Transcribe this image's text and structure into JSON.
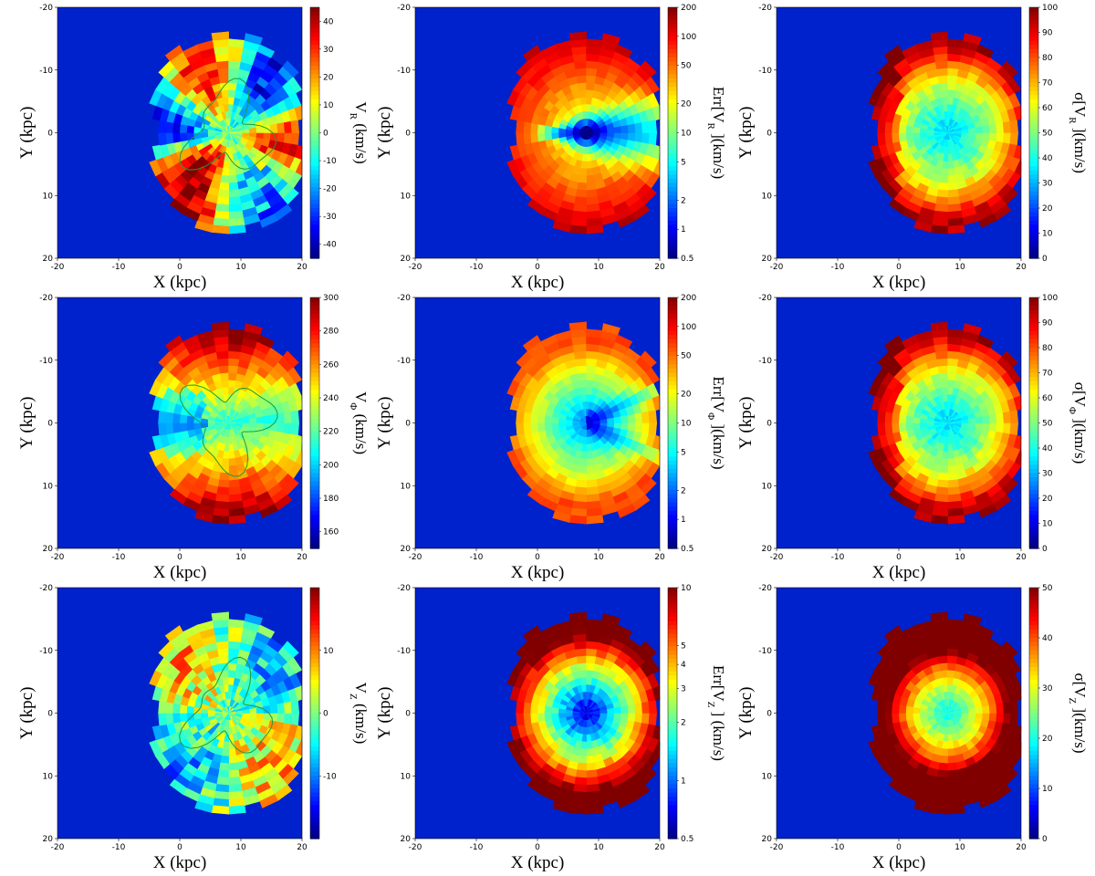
{
  "figure": {
    "background_color": "#0022cc",
    "rows": 3,
    "cols": 3
  },
  "chart_data": [
    {
      "type": "heatmap",
      "id": "vr",
      "title": "",
      "xlabel": "X (kpc)",
      "ylabel": "Y (kpc)",
      "xlim": [
        -20,
        20
      ],
      "ylim": [
        -20,
        20
      ],
      "y_inverted": true,
      "xticks": [
        "-20",
        "-10",
        "0",
        "10",
        "20"
      ],
      "yticks": [
        "-20",
        "-10",
        "0",
        "10",
        "20"
      ],
      "colorbar": {
        "label": "V_R (km/s)",
        "label_main": "V",
        "label_sub": "R",
        "label_rest": " (km/s)",
        "scale": "linear",
        "range": [
          -45,
          45
        ],
        "ticks": [
          "40",
          "30",
          "20",
          "10",
          "0",
          "-10",
          "-20",
          "-30",
          "-40"
        ]
      },
      "pattern": "vr",
      "contour": true
    },
    {
      "type": "heatmap",
      "id": "err_vr",
      "title": "",
      "xlabel": "X (kpc)",
      "ylabel": "Y (kpc)",
      "xlim": [
        -20,
        20
      ],
      "ylim": [
        -20,
        20
      ],
      "y_inverted": true,
      "xticks": [
        "-20",
        "-10",
        "0",
        "10",
        "20"
      ],
      "yticks": [
        "-20",
        "-10",
        "0",
        "10",
        "20"
      ],
      "colorbar": {
        "label": "Err[V_R ](km/s)",
        "label_main": "Err[V",
        "label_sub": "R",
        "label_rest": " ](km/s)",
        "scale": "log",
        "range": [
          0.5,
          200
        ],
        "ticks": [
          "200",
          "100",
          "50",
          "20",
          "10",
          "5",
          "2",
          "1",
          "0.5"
        ]
      },
      "pattern": "err_r",
      "contour": false
    },
    {
      "type": "heatmap",
      "id": "sig_vr",
      "title": "",
      "xlabel": "X (kpc)",
      "ylabel": "Y (kpc)",
      "xlim": [
        -20,
        20
      ],
      "ylim": [
        -20,
        20
      ],
      "y_inverted": true,
      "xticks": [
        "-20",
        "-10",
        "0",
        "10",
        "20"
      ],
      "yticks": [
        "-20",
        "-10",
        "0",
        "10",
        "20"
      ],
      "colorbar": {
        "label": "σ[V_R ](km/s)",
        "label_main": "σ[V",
        "label_sub": "R",
        "label_rest": " ](km/s)",
        "scale": "linear",
        "range": [
          0,
          100
        ],
        "ticks": [
          "100",
          "90",
          "80",
          "70",
          "60",
          "50",
          "40",
          "30",
          "20",
          "10",
          "0"
        ]
      },
      "pattern": "sig",
      "contour": false
    },
    {
      "type": "heatmap",
      "id": "vphi",
      "title": "",
      "xlabel": "X (kpc)",
      "ylabel": "Y (kpc)",
      "xlim": [
        -20,
        20
      ],
      "ylim": [
        -20,
        20
      ],
      "y_inverted": true,
      "xticks": [
        "-20",
        "-10",
        "0",
        "10",
        "20"
      ],
      "yticks": [
        "-20",
        "-10",
        "0",
        "10",
        "20"
      ],
      "colorbar": {
        "label": "V_Φ (km/s)",
        "label_main": "V",
        "label_sub": "Φ",
        "label_rest": " (km/s)",
        "scale": "linear",
        "range": [
          150,
          300
        ],
        "ticks": [
          "300",
          "280",
          "260",
          "240",
          "220",
          "200",
          "180",
          "160"
        ]
      },
      "pattern": "vphi",
      "contour": true
    },
    {
      "type": "heatmap",
      "id": "err_vphi",
      "title": "",
      "xlabel": "X (kpc)",
      "ylabel": "Y (kpc)",
      "xlim": [
        -20,
        20
      ],
      "ylim": [
        -20,
        20
      ],
      "y_inverted": true,
      "xticks": [
        "-20",
        "-10",
        "0",
        "10",
        "20"
      ],
      "yticks": [
        "-20",
        "-10",
        "0",
        "10",
        "20"
      ],
      "colorbar": {
        "label": "Err[V_Φ ](km/s)",
        "label_main": "Err[V",
        "label_sub": "Φ",
        "label_rest": " ](km/s)",
        "scale": "log",
        "range": [
          0.5,
          200
        ],
        "ticks": [
          "200",
          "100",
          "50",
          "20",
          "10",
          "5",
          "2",
          "1",
          "0.5"
        ]
      },
      "pattern": "err_phi",
      "contour": false
    },
    {
      "type": "heatmap",
      "id": "sig_vphi",
      "title": "",
      "xlabel": "X (kpc)",
      "ylabel": "Y (kpc)",
      "xlim": [
        -20,
        20
      ],
      "ylim": [
        -20,
        20
      ],
      "y_inverted": true,
      "xticks": [
        "-20",
        "-10",
        "0",
        "10",
        "20"
      ],
      "yticks": [
        "-20",
        "-10",
        "0",
        "10",
        "20"
      ],
      "colorbar": {
        "label": "σ[V_Φ ](km/s)",
        "label_main": "σ[V",
        "label_sub": "Φ",
        "label_rest": " ](km/s)",
        "scale": "linear",
        "range": [
          0,
          100
        ],
        "ticks": [
          "100",
          "90",
          "80",
          "70",
          "60",
          "50",
          "40",
          "30",
          "20",
          "10",
          "0"
        ]
      },
      "pattern": "sig",
      "contour": false
    },
    {
      "type": "heatmap",
      "id": "vz",
      "title": "",
      "xlabel": "X (kpc)",
      "ylabel": "Y (kpc)",
      "xlim": [
        -20,
        20
      ],
      "ylim": [
        -20,
        20
      ],
      "y_inverted": true,
      "xticks": [
        "-20",
        "-10",
        "0",
        "10",
        "20"
      ],
      "yticks": [
        "-20",
        "-10",
        "0",
        "10",
        "20"
      ],
      "colorbar": {
        "label": "V_Z (km/s)",
        "label_main": "V",
        "label_sub": "Z",
        "label_rest": " (km/s)",
        "scale": "linear",
        "range": [
          -20,
          20
        ],
        "ticks": [
          "10",
          "0",
          "-10"
        ]
      },
      "pattern": "vz",
      "contour": true
    },
    {
      "type": "heatmap",
      "id": "err_vz",
      "title": "",
      "xlabel": "X (kpc)",
      "ylabel": "Y (kpc)",
      "xlim": [
        -20,
        20
      ],
      "ylim": [
        -20,
        20
      ],
      "y_inverted": true,
      "xticks": [
        "-20",
        "-10",
        "0",
        "10",
        "20"
      ],
      "yticks": [
        "-20",
        "-10",
        "0",
        "10",
        "20"
      ],
      "colorbar": {
        "label": "Err[V_Z ] (km/s)",
        "label_main": "Err[V",
        "label_sub": "Z",
        "label_rest": " ] (km/s)",
        "scale": "log",
        "range": [
          0.5,
          10
        ],
        "ticks": [
          "10",
          "5",
          "4",
          "3",
          "2",
          "1",
          "0.5"
        ]
      },
      "pattern": "err_z",
      "contour": false
    },
    {
      "type": "heatmap",
      "id": "sig_vz",
      "title": "",
      "xlabel": "X (kpc)",
      "ylabel": "Y (kpc)",
      "xlim": [
        -20,
        20
      ],
      "ylim": [
        -20,
        20
      ],
      "y_inverted": true,
      "xticks": [
        "-20",
        "-10",
        "0",
        "10",
        "20"
      ],
      "yticks": [
        "-20",
        "-10",
        "0",
        "10",
        "20"
      ],
      "colorbar": {
        "label": "σ[V_Z ](km/s)",
        "label_main": "σ[V",
        "label_sub": "Z",
        "label_rest": " ](km/s)",
        "scale": "linear",
        "range": [
          0,
          50
        ],
        "ticks": [
          "50",
          "40",
          "30",
          "20",
          "10",
          "0"
        ]
      },
      "pattern": "sig_z",
      "contour": false
    }
  ]
}
